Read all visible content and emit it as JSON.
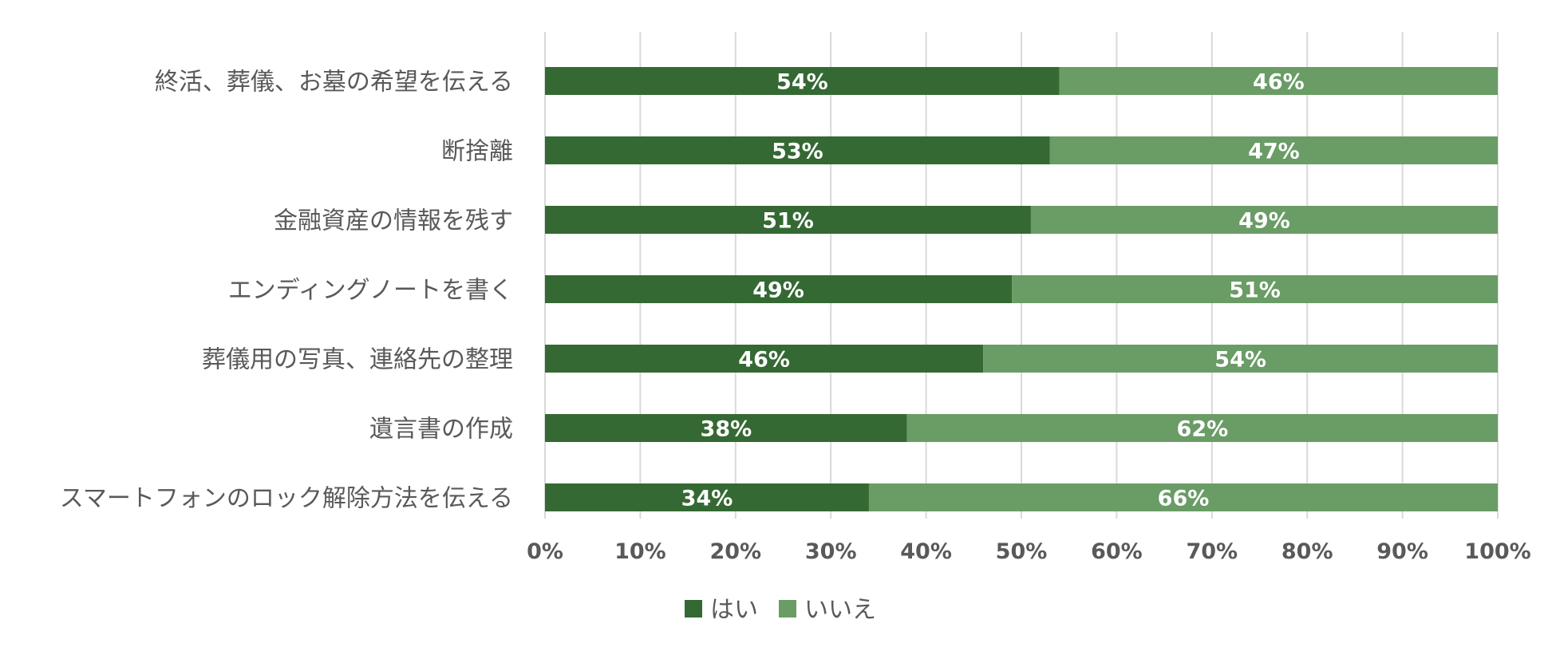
{
  "chart_data": {
    "type": "bar",
    "orientation": "horizontal",
    "stacked": true,
    "categories": [
      "終活、葬儀、お墓の希望を伝える",
      "断捨離",
      "金融資産の情報を残す",
      "エンディングノートを書く",
      "葬儀用の写真、連絡先の整理",
      "遺言書の作成",
      "スマートフォンのロック解除方法を伝える"
    ],
    "series": [
      {
        "name": "はい",
        "values": [
          54,
          53,
          51,
          49,
          46,
          38,
          34
        ],
        "color": "#356933"
      },
      {
        "name": "いいえ",
        "values": [
          46,
          47,
          49,
          51,
          54,
          62,
          66
        ],
        "color": "#6a9c66"
      }
    ],
    "data_labels": [
      [
        "54%",
        "53%",
        "51%",
        "49%",
        "46%",
        "38%",
        "34%"
      ],
      [
        "46%",
        "47%",
        "49%",
        "51%",
        "54%",
        "62%",
        "66%"
      ]
    ],
    "xlim": [
      0,
      100
    ],
    "xticks": [
      0,
      10,
      20,
      30,
      40,
      50,
      60,
      70,
      80,
      90,
      100
    ],
    "xtick_labels": [
      "0%",
      "10%",
      "20%",
      "30%",
      "40%",
      "50%",
      "60%",
      "70%",
      "80%",
      "90%",
      "100%"
    ],
    "grid": true,
    "grid_color": "#d9d9d9",
    "legend_position": "bottom"
  }
}
